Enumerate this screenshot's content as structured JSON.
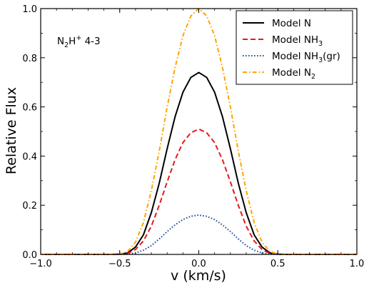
{
  "chart_data": {
    "type": "line",
    "title": "",
    "xlabel": "v (km/s)",
    "ylabel": "Relative Flux",
    "xlim": [
      -1.0,
      1.0
    ],
    "ylim": [
      0.0,
      1.0
    ],
    "x_ticks": [
      "−1.0",
      "−0.5",
      "0.0",
      "0.5",
      "1.0"
    ],
    "y_ticks": [
      "0.0",
      "0.2",
      "0.4",
      "0.6",
      "0.8",
      "1.0"
    ],
    "grid": false,
    "legend_position": "top-right",
    "annotation": {
      "base": "N",
      "sub": "2",
      "mid": "H",
      "sup": "+",
      "rest": " 4-3"
    },
    "series": [
      {
        "name": "Model N",
        "name_base": "Model N",
        "name_sub": "",
        "name_tail": "",
        "color": "#000000",
        "dash": "solid",
        "x": [
          -0.55,
          -0.5,
          -0.45,
          -0.4,
          -0.35,
          -0.3,
          -0.25,
          -0.2,
          -0.15,
          -0.1,
          -0.05,
          0.0,
          0.05,
          0.1,
          0.15,
          0.2,
          0.25,
          0.3,
          0.35,
          0.4,
          0.45,
          0.5,
          0.55
        ],
        "y": [
          0.0,
          0.001,
          0.006,
          0.03,
          0.08,
          0.17,
          0.29,
          0.43,
          0.56,
          0.66,
          0.72,
          0.74,
          0.72,
          0.66,
          0.56,
          0.43,
          0.29,
          0.17,
          0.08,
          0.03,
          0.006,
          0.001,
          0.0
        ]
      },
      {
        "name": "Model NH3",
        "name_base": "Model NH",
        "name_sub": "3",
        "name_tail": "",
        "color": "#e41a1c",
        "dash": "dashed",
        "x": [
          -0.55,
          -0.5,
          -0.45,
          -0.4,
          -0.35,
          -0.3,
          -0.25,
          -0.2,
          -0.15,
          -0.1,
          -0.05,
          0.0,
          0.05,
          0.1,
          0.15,
          0.2,
          0.25,
          0.3,
          0.35,
          0.4,
          0.45,
          0.5,
          0.55
        ],
        "y": [
          0.0,
          0.001,
          0.004,
          0.02,
          0.055,
          0.115,
          0.2,
          0.295,
          0.385,
          0.455,
          0.495,
          0.51,
          0.495,
          0.455,
          0.385,
          0.295,
          0.2,
          0.115,
          0.055,
          0.02,
          0.004,
          0.001,
          0.0
        ]
      },
      {
        "name": "Model NH3(gr)",
        "name_base": "Model NH",
        "name_sub": "3",
        "name_tail": "(gr)",
        "color": "#1f4e9c",
        "dash": "dotted",
        "x": [
          -0.55,
          -0.5,
          -0.45,
          -0.4,
          -0.35,
          -0.3,
          -0.25,
          -0.2,
          -0.15,
          -0.1,
          -0.05,
          0.0,
          0.05,
          0.1,
          0.15,
          0.2,
          0.25,
          0.3,
          0.35,
          0.4,
          0.45,
          0.5,
          0.55
        ],
        "y": [
          0.0,
          0.0,
          0.001,
          0.006,
          0.017,
          0.036,
          0.063,
          0.093,
          0.12,
          0.142,
          0.155,
          0.16,
          0.155,
          0.142,
          0.12,
          0.093,
          0.063,
          0.036,
          0.017,
          0.006,
          0.001,
          0.0,
          0.0
        ]
      },
      {
        "name": "Model N2",
        "name_base": "Model N",
        "name_sub": "2",
        "name_tail": "",
        "color": "#ffa500",
        "dash": "dashdot",
        "x": [
          -0.55,
          -0.5,
          -0.45,
          -0.4,
          -0.35,
          -0.3,
          -0.25,
          -0.2,
          -0.15,
          -0.1,
          -0.05,
          0.0,
          0.05,
          0.1,
          0.15,
          0.2,
          0.25,
          0.3,
          0.35,
          0.4,
          0.45,
          0.5,
          0.55
        ],
        "y": [
          0.0,
          0.002,
          0.012,
          0.05,
          0.13,
          0.26,
          0.42,
          0.6,
          0.76,
          0.89,
          0.97,
          1.0,
          0.97,
          0.89,
          0.76,
          0.6,
          0.42,
          0.26,
          0.13,
          0.05,
          0.012,
          0.002,
          0.0
        ]
      }
    ]
  }
}
